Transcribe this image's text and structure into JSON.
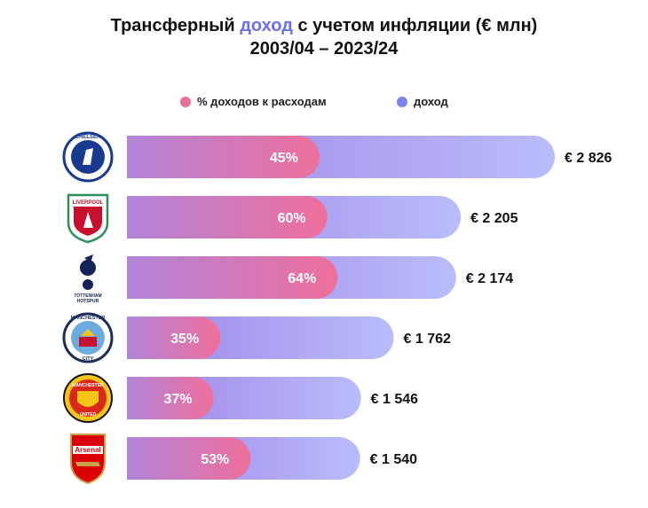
{
  "title": {
    "line1_before": "Трансферный ",
    "line1_accent": "доход",
    "line1_after": " с учетом инфляции (€ млн)",
    "line2": "2003/04 – 2023/24"
  },
  "legend": [
    {
      "label": "% доходов к расходам",
      "color": "#e8719b"
    },
    {
      "label": "доход",
      "color": "#7b82f2"
    }
  ],
  "colors": {
    "income_start": "#9f83e6",
    "income_end": "#b9bcfb",
    "pct_start": "#b184d8",
    "pct_end": "#ef6f9b"
  },
  "chart_data": {
    "type": "bar",
    "title": "Трансферный доход с учетом инфляции (€ млн) 2003/04 – 2023/24",
    "categories": [
      "Chelsea",
      "Liverpool",
      "Tottenham Hotspur",
      "Manchester City",
      "Manchester United",
      "Arsenal"
    ],
    "series": [
      {
        "name": "доход",
        "values": [
          2826,
          2205,
          2174,
          1762,
          1546,
          1540
        ],
        "labels": [
          "€ 2 826",
          "€ 2 205",
          "€ 2 174",
          "€ 1 762",
          "€ 1 546",
          "€ 1 540"
        ]
      },
      {
        "name": "% доходов к расходам",
        "values": [
          45,
          60,
          64,
          35,
          37,
          53
        ],
        "labels": [
          "45%",
          "60%",
          "64%",
          "35%",
          "37%",
          "53%"
        ]
      }
    ],
    "logo_texts": [
      "CHELSEA",
      "LIVERPOOL",
      "TOTTENHAM HOTSPUR",
      "MANCHESTER CITY",
      "MANCHESTER UNITED",
      "Arsenal"
    ],
    "xlabel": "",
    "ylabel": ""
  }
}
